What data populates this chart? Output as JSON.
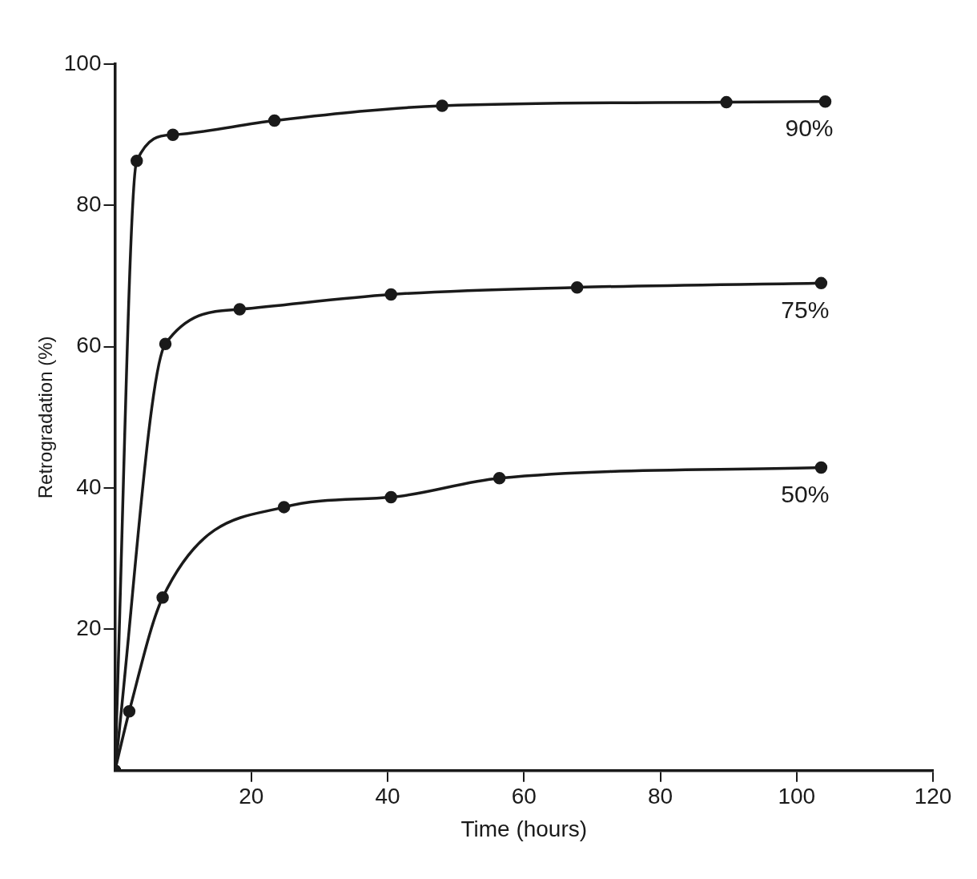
{
  "chart_data": {
    "type": "line",
    "xlabel": "Time (hours)",
    "ylabel": "Retrogradation (%)",
    "xlim": [
      0,
      120
    ],
    "xticks": [
      20,
      40,
      60,
      80,
      100,
      120
    ],
    "ylim": [
      0,
      100
    ],
    "yticks": [
      20,
      40,
      60,
      80,
      100
    ],
    "grid": false,
    "legend": false,
    "marker": "circle",
    "line_style": "solid",
    "series": [
      {
        "name": "90%",
        "color": "#1a1a1a",
        "x": [
          0,
          3.2,
          8.5,
          23.4,
          48,
          89.7,
          104.2
        ],
        "values": [
          0,
          86.3,
          90,
          92,
          94.1,
          94.6,
          94.7
        ]
      },
      {
        "name": "75%",
        "color": "#1a1a1a",
        "x": [
          0,
          7.4,
          18.3,
          40.5,
          67.8,
          103.6
        ],
        "values": [
          0,
          60.4,
          65.3,
          67.4,
          68.4,
          69
        ]
      },
      {
        "name": "50%",
        "color": "#1a1a1a",
        "x": [
          0,
          2.1,
          7,
          24.8,
          40.5,
          56.4,
          103.6
        ],
        "values": [
          0,
          8.4,
          24.5,
          37.3,
          38.7,
          41.4,
          42.9
        ]
      }
    ]
  }
}
